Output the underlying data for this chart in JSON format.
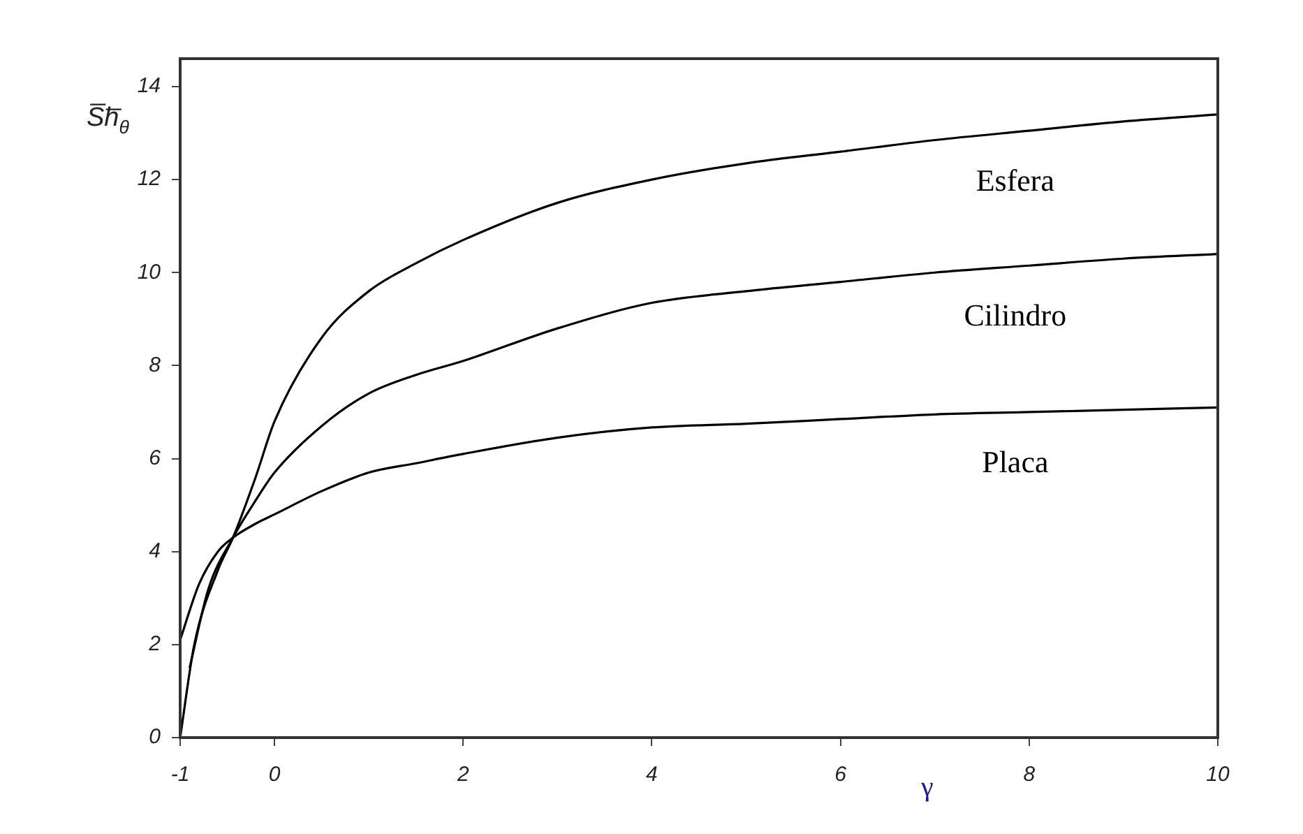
{
  "chart_data": {
    "type": "line",
    "xlabel": "γ",
    "ylabel": "S̅h̅$_{θ}$",
    "xlim": [
      -1,
      10
    ],
    "xticks": [
      -1,
      0,
      2,
      4,
      6,
      8,
      10
    ],
    "ylim": [
      0,
      14.6
    ],
    "yticks": [
      0,
      2,
      4,
      6,
      8,
      10,
      12,
      14
    ],
    "grid": false,
    "legend": false,
    "marker": "none",
    "line_style": "solid",
    "series": [
      {
        "name": "Esfera",
        "color": "#000000",
        "x": [
          -1,
          -0.85,
          -0.6,
          -0.44,
          -0.2,
          0,
          0.5,
          1,
          1.5,
          2,
          3,
          4,
          5,
          6,
          7,
          8,
          9,
          10
        ],
        "values": [
          0,
          2,
          3.6,
          4.3,
          5.6,
          6.8,
          8.6,
          9.6,
          10.2,
          10.7,
          11.5,
          12,
          12.35,
          12.6,
          12.85,
          13.05,
          13.25,
          13.4
        ]
      },
      {
        "name": "Cilindro",
        "color": "#000000",
        "x": [
          -0.9,
          -0.7,
          -0.44,
          -0.2,
          0,
          0.5,
          1,
          1.5,
          2,
          3,
          4,
          5,
          6,
          7,
          8,
          9,
          10
        ],
        "values": [
          1.5,
          3.2,
          4.3,
          5.1,
          5.7,
          6.7,
          7.4,
          7.8,
          8.1,
          8.8,
          9.35,
          9.6,
          9.8,
          10,
          10.15,
          10.3,
          10.4
        ]
      },
      {
        "name": "Placa",
        "color": "#000000",
        "x": [
          -1,
          -0.8,
          -0.6,
          -0.44,
          -0.2,
          0,
          0.5,
          1,
          1.5,
          2,
          3,
          4,
          5,
          6,
          7,
          8,
          9,
          10
        ],
        "values": [
          2.1,
          3.3,
          4,
          4.3,
          4.6,
          4.8,
          5.3,
          5.7,
          5.9,
          6.1,
          6.45,
          6.67,
          6.75,
          6.85,
          6.95,
          7,
          7.05,
          7.1
        ]
      }
    ]
  }
}
